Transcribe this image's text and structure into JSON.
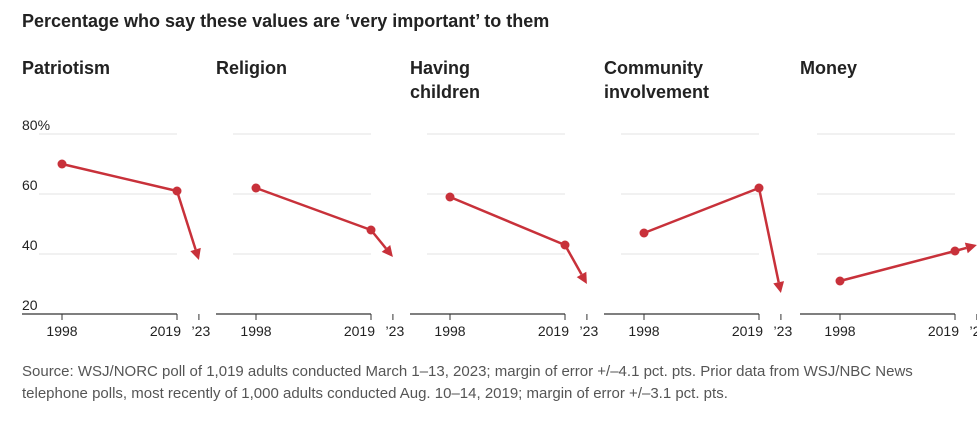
{
  "title": "Percentage who say these values are ‘very important’ to them",
  "source": "Source: WSJ/NORC poll of 1,019 adults conducted March 1–13, 2023; margin of error +/–4.1 pct. pts. Prior data from WSJ/NBC News telephone polls, most recently of 1,000 adults conducted Aug. 10–14, 2019; margin of error +/–3.1 pct. pts.",
  "colors": {
    "series": "#c8313a",
    "grid": "#e3e3e3",
    "axis": "#333333",
    "text": "#222222",
    "muted": "#555555"
  },
  "chart_data": {
    "type": "line",
    "title": "Percentage who say these values are ‘very important’ to them",
    "x": [
      "1998",
      "2019",
      "’23"
    ],
    "x_values": [
      1998,
      2019,
      2023
    ],
    "ylim": [
      20,
      80
    ],
    "yticks": [
      20,
      40,
      60,
      80
    ],
    "ytick_labels": [
      "20",
      "40",
      "60",
      "80%"
    ],
    "grid": true,
    "panels": [
      {
        "name": "Patriotism",
        "title_lines": [
          "Patriotism"
        ],
        "values": [
          70,
          61,
          38
        ]
      },
      {
        "name": "Religion",
        "title_lines": [
          "Religion"
        ],
        "values": [
          62,
          48,
          39
        ]
      },
      {
        "name": "Having children",
        "title_lines": [
          "Having",
          "children"
        ],
        "values": [
          59,
          43,
          30
        ]
      },
      {
        "name": "Community involvement",
        "title_lines": [
          "Community",
          "involvement"
        ],
        "values": [
          47,
          62,
          27
        ]
      },
      {
        "name": "Money",
        "title_lines": [
          "Money"
        ],
        "values": [
          31,
          41,
          43
        ]
      }
    ]
  }
}
